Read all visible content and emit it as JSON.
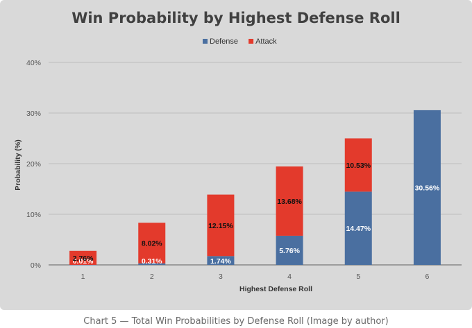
{
  "chart_data": {
    "type": "bar",
    "stacked": true,
    "title": "Win Probability by Highest Defense Roll",
    "xlabel": "Highest Defense Roll",
    "ylabel": "Probability (%)",
    "categories": [
      "1",
      "2",
      "3",
      "4",
      "5",
      "6"
    ],
    "series": [
      {
        "name": "Defense",
        "color": "#4a6fa0",
        "values": [
          0.01,
          0.31,
          1.74,
          5.76,
          14.47,
          30.56
        ],
        "labels": [
          "0.01%",
          "0.31%",
          "1.74%",
          "5.76%",
          "14.47%",
          "30.56%"
        ],
        "label_color": "#ffffff"
      },
      {
        "name": "Attack",
        "color": "#e33a2c",
        "values": [
          2.76,
          8.02,
          12.15,
          13.68,
          10.53,
          0
        ],
        "labels": [
          "2.76%",
          "8.02%",
          "12.15%",
          "13.68%",
          "10.53%",
          ""
        ],
        "label_color": "#111111"
      }
    ],
    "yticks": [
      "0%",
      "10%",
      "20%",
      "30%",
      "40%"
    ],
    "ylim": [
      0,
      40
    ],
    "grid": true,
    "legend_position": "top",
    "background": "#d9d9d9"
  },
  "caption": "Chart 5 — Total Win Probabilities by Defense Roll (Image by author)"
}
